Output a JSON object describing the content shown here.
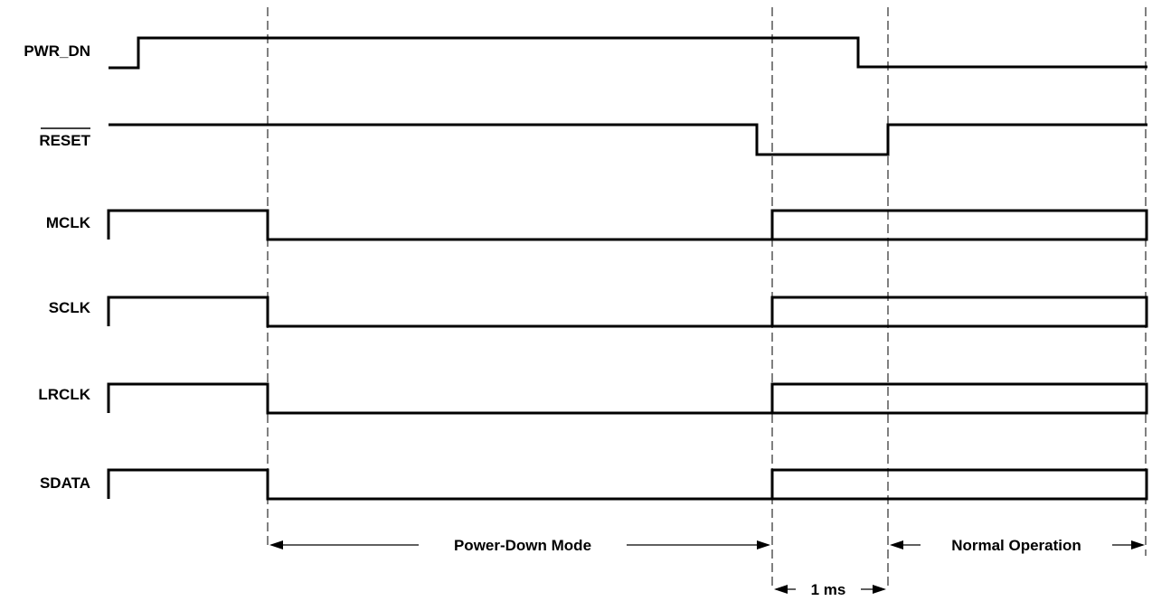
{
  "signals": [
    {
      "name": "PWR_DN",
      "active_low": false
    },
    {
      "name": "RESET",
      "active_low": true
    },
    {
      "name": "MCLK",
      "active_low": false
    },
    {
      "name": "SCLK",
      "active_low": false
    },
    {
      "name": "LRCLK",
      "active_low": false
    },
    {
      "name": "SDATA",
      "active_low": false
    }
  ],
  "annotations": {
    "power_down": "Power-Down Mode",
    "normal": "Normal Operation",
    "delay": "1 ms"
  },
  "colors": {
    "line": "#000000",
    "background": "#ffffff"
  }
}
